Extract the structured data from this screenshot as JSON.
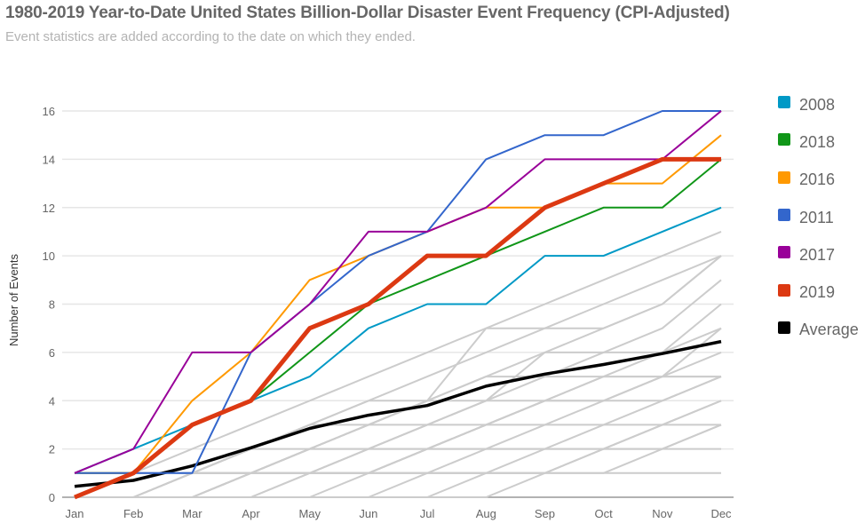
{
  "chart_data": {
    "type": "line",
    "title": "1980-2019 Year-to-Date United States Billion-Dollar Disaster Event Frequency (CPI-Adjusted)",
    "subtitle": "Event statistics are added according to the date on which they ended.",
    "xlabel": "",
    "ylabel": "Number of Events",
    "ylim": [
      0,
      16
    ],
    "yticks": [
      0,
      2,
      4,
      6,
      8,
      10,
      12,
      14,
      16
    ],
    "ytick_labels": [
      "0",
      "2",
      "4",
      "6",
      "8",
      "10",
      "12",
      "14",
      "16"
    ],
    "grid": true,
    "legend_position": "right",
    "categories": [
      "Jan",
      "Feb",
      "Mar",
      "Apr",
      "May",
      "Jun",
      "Jul",
      "Aug",
      "Sep",
      "Oct",
      "Nov",
      "Dec"
    ],
    "series": [
      {
        "name": "2008",
        "color": "#0099c6",
        "values": [
          1,
          2,
          3,
          4,
          5,
          7,
          8,
          8,
          10,
          10,
          11,
          12
        ]
      },
      {
        "name": "2018",
        "color": "#109618",
        "values": [
          1,
          1,
          3,
          4,
          6,
          8,
          9,
          10,
          11,
          12,
          12,
          14
        ]
      },
      {
        "name": "2016",
        "color": "#ff9900",
        "values": [
          1,
          1,
          4,
          6,
          9,
          10,
          11,
          12,
          12,
          13,
          13,
          15
        ]
      },
      {
        "name": "2011",
        "color": "#3366cc",
        "values": [
          1,
          1,
          1,
          6,
          8,
          10,
          11,
          14,
          15,
          15,
          16,
          16
        ]
      },
      {
        "name": "2017",
        "color": "#990099",
        "values": [
          1,
          2,
          6,
          6,
          8,
          11,
          11,
          12,
          14,
          14,
          14,
          16
        ]
      },
      {
        "name": "2019",
        "color": "#dc3912",
        "values": [
          0,
          1,
          3,
          4,
          7,
          8,
          10,
          10,
          12,
          13,
          14,
          14
        ]
      },
      {
        "name": "Average",
        "color": "#000000",
        "values": [
          0.45,
          0.7,
          1.3,
          2.05,
          2.85,
          3.4,
          3.8,
          4.6,
          5.1,
          5.5,
          5.95,
          6.45
        ]
      }
    ],
    "background_series_color": "#cccccc",
    "background_series": [
      [
        0,
        0,
        0,
        1,
        2,
        3,
        4,
        5,
        6,
        7,
        8,
        10
      ],
      [
        0,
        1,
        2,
        3,
        4,
        5,
        6,
        7,
        8,
        9,
        10,
        11
      ],
      [
        0,
        0,
        1,
        2,
        3,
        4,
        5,
        6,
        7,
        8,
        9,
        10
      ],
      [
        0,
        1,
        1,
        2,
        3,
        4,
        4,
        7,
        7,
        7,
        8,
        10
      ],
      [
        0,
        0,
        0,
        1,
        2,
        3,
        4,
        4,
        6,
        6,
        7,
        9
      ],
      [
        0,
        1,
        1,
        1,
        2,
        2,
        3,
        4,
        5,
        6,
        6,
        8
      ],
      [
        0,
        0,
        1,
        1,
        1,
        2,
        2,
        3,
        4,
        5,
        6,
        7
      ],
      [
        0,
        1,
        1,
        2,
        2,
        3,
        3,
        4,
        4,
        5,
        5,
        7
      ],
      [
        0,
        0,
        0,
        0,
        1,
        1,
        2,
        3,
        4,
        4,
        5,
        6
      ],
      [
        0,
        0,
        1,
        1,
        2,
        2,
        3,
        3,
        4,
        4,
        4,
        5
      ],
      [
        0,
        0,
        0,
        1,
        1,
        1,
        2,
        2,
        3,
        3,
        4,
        5
      ],
      [
        0,
        1,
        1,
        1,
        1,
        1,
        1,
        2,
        2,
        3,
        3,
        4
      ],
      [
        0,
        0,
        0,
        0,
        0,
        1,
        1,
        1,
        2,
        2,
        3,
        4
      ],
      [
        0,
        0,
        0,
        0,
        0,
        0,
        1,
        1,
        1,
        2,
        2,
        3
      ],
      [
        0,
        0,
        0,
        0,
        0,
        0,
        0,
        1,
        1,
        1,
        2,
        3
      ],
      [
        0,
        1,
        1,
        1,
        1,
        1,
        1,
        1,
        1,
        1,
        1,
        1
      ],
      [
        0,
        0,
        0,
        0,
        1,
        1,
        2,
        2,
        2,
        2,
        3,
        3
      ],
      [
        0,
        0,
        0,
        1,
        1,
        2,
        2,
        3,
        3,
        4,
        5,
        5
      ],
      [
        0,
        0,
        1,
        2,
        3,
        3,
        4,
        5,
        5,
        5,
        5,
        5
      ],
      [
        0,
        0,
        0,
        0,
        0,
        0,
        0,
        0,
        1,
        2,
        2,
        2
      ]
    ]
  },
  "legend": {
    "items": [
      {
        "label": "2008",
        "color": "#0099c6"
      },
      {
        "label": "2018",
        "color": "#109618"
      },
      {
        "label": "2016",
        "color": "#ff9900"
      },
      {
        "label": "2011",
        "color": "#3366cc"
      },
      {
        "label": "2017",
        "color": "#990099"
      },
      {
        "label": "2019",
        "color": "#dc3912"
      },
      {
        "label": "Average",
        "color": "#000000"
      }
    ]
  }
}
